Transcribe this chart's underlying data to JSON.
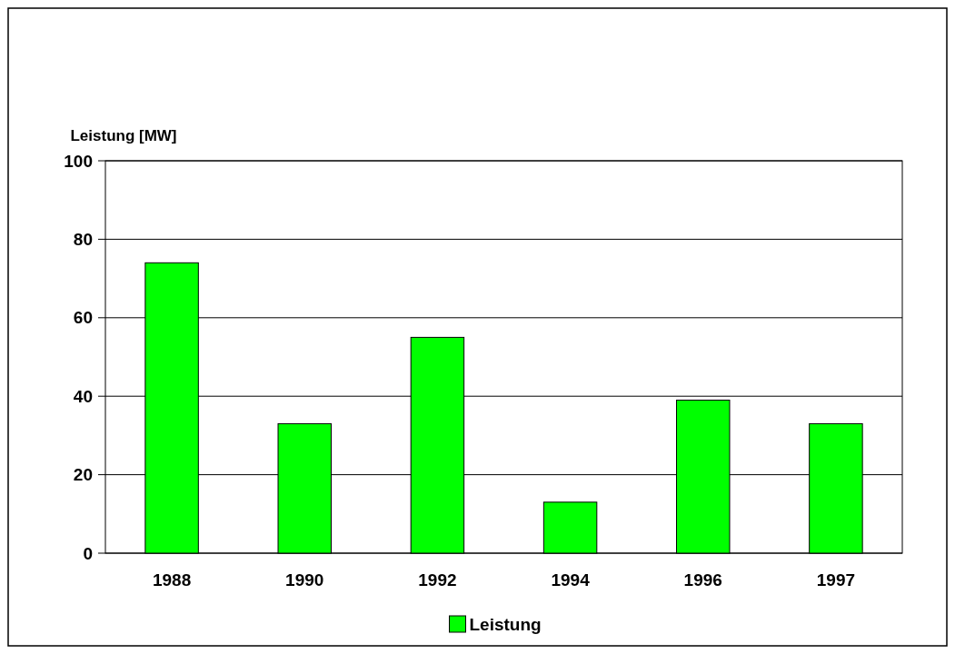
{
  "chart_data": {
    "type": "bar",
    "ylabel": "Leistung [MW]",
    "categories": [
      "1988",
      "1990",
      "1992",
      "1994",
      "1996",
      "1997"
    ],
    "series": [
      {
        "name": "Leistung",
        "color": "#00ff00",
        "values": [
          74,
          33,
          55,
          13,
          39,
          33
        ]
      }
    ],
    "ylim": [
      0,
      100
    ],
    "yticks": [
      0,
      20,
      40,
      60,
      80,
      100
    ],
    "grid": "y",
    "legend": "bottom"
  }
}
